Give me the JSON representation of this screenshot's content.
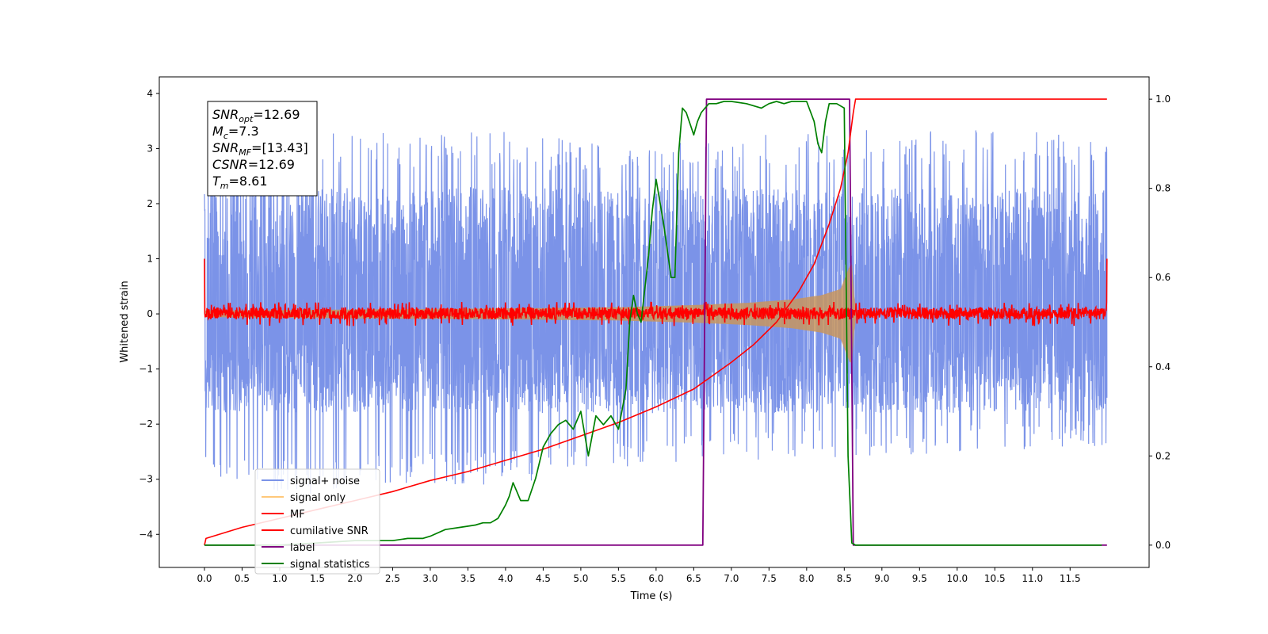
{
  "chart_data": {
    "type": "line",
    "title": "",
    "xlabel": "Time (s)",
    "ylabel": "Whitened strain",
    "xlim": [
      -0.6,
      12.55
    ],
    "ylim": [
      -4.6,
      4.3
    ],
    "y2lim": [
      -0.05,
      1.05
    ],
    "x_ticks": [
      0.0,
      0.5,
      1.0,
      1.5,
      2.0,
      2.5,
      3.0,
      3.5,
      4.0,
      4.5,
      5.0,
      5.5,
      6.0,
      6.5,
      7.0,
      7.5,
      8.0,
      8.5,
      9.0,
      9.5,
      10.0,
      10.5,
      11.0,
      11.5
    ],
    "x_tick_labels": [
      "0.0",
      "0.5",
      "1.0",
      "1.5",
      "2.0",
      "2.5",
      "3.0",
      "3.5",
      "4.0",
      "4.5",
      "5.0",
      "5.5",
      "6.0",
      "6.5",
      "7.0",
      "7.5",
      "8.0",
      "8.5",
      "9.0",
      "9.5",
      "10.0",
      "10.5",
      "11.0",
      "11.5"
    ],
    "y_ticks": [
      -4,
      -3,
      -2,
      -1,
      0,
      1,
      2,
      3,
      4
    ],
    "y_tick_labels": [
      "−4",
      "−3",
      "−2",
      "−1",
      "0",
      "1",
      "2",
      "3",
      "4"
    ],
    "y2_ticks": [
      0.0,
      0.2,
      0.4,
      0.6,
      0.8,
      1.0
    ],
    "y2_tick_labels": [
      "0.0",
      "0.2",
      "0.4",
      "0.6",
      "0.8",
      "1.0"
    ],
    "grid": false,
    "legend_position": "lower-left",
    "annotation_box": {
      "lines": [
        {
          "main": "SNR",
          "sub": "opt",
          "rest": "=12.69"
        },
        {
          "main": "M",
          "sub": "c",
          "rest": "=7.3"
        },
        {
          "main": "SNR",
          "sub": "MF",
          "rest": "=[13.43]"
        },
        {
          "main": "CSNR",
          "sub": "",
          "rest": "=12.69"
        },
        {
          "main": "T",
          "sub": "m",
          "rest": "=8.61"
        }
      ]
    },
    "series": [
      {
        "name": "signal+ noise",
        "color": "#7b93e8",
        "axis": "left",
        "kind": "noise",
        "x_range": [
          0.0,
          11.99
        ],
        "envelope_upper": [
          [
            0.0,
            3.0
          ],
          [
            1.0,
            3.3
          ],
          [
            4.0,
            3.3
          ],
          [
            6.0,
            3.1
          ],
          [
            8.6,
            3.4
          ],
          [
            11.99,
            3.3
          ]
        ],
        "envelope_lower": [
          [
            0.0,
            -2.9
          ],
          [
            1.0,
            -3.3
          ],
          [
            4.0,
            -3.1
          ],
          [
            6.0,
            -2.7
          ],
          [
            8.6,
            -2.6
          ],
          [
            11.99,
            -2.4
          ]
        ],
        "dense_band": [
          -1.8,
          2.3
        ]
      },
      {
        "name": "signal only",
        "color": "#ffc87a",
        "axis": "left",
        "kind": "chirp",
        "x": [
          0.0,
          2.0,
          4.0,
          5.5,
          6.5,
          7.2,
          7.8,
          8.2,
          8.45,
          8.55,
          8.6,
          8.65,
          11.99
        ],
        "amplitude": [
          0.06,
          0.08,
          0.1,
          0.12,
          0.16,
          0.2,
          0.26,
          0.34,
          0.45,
          0.8,
          0.95,
          0.0,
          0.0
        ]
      },
      {
        "name": "MF",
        "color": "#ff0000",
        "axis": "left",
        "kind": "noise_small",
        "x_range": [
          0.0,
          11.99
        ],
        "band": [
          -0.1,
          0.12
        ],
        "peak": 0.22,
        "edge_value": 1.0
      },
      {
        "name": "cumilative SNR",
        "color": "#ff0000",
        "axis": "right",
        "x": [
          0.0,
          0.02,
          0.5,
          1.0,
          1.5,
          2.0,
          2.5,
          3.0,
          3.5,
          4.0,
          4.5,
          5.0,
          5.5,
          6.0,
          6.5,
          7.0,
          7.3,
          7.6,
          7.9,
          8.1,
          8.3,
          8.45,
          8.55,
          8.62,
          8.65,
          11.99
        ],
        "y": [
          0.0,
          0.015,
          0.04,
          0.06,
          0.08,
          0.1,
          0.12,
          0.145,
          0.165,
          0.19,
          0.215,
          0.245,
          0.275,
          0.31,
          0.35,
          0.41,
          0.45,
          0.5,
          0.57,
          0.63,
          0.72,
          0.8,
          0.88,
          0.97,
          1.0,
          1.0
        ]
      },
      {
        "name": "label",
        "color": "#800080",
        "axis": "right",
        "x": [
          0.0,
          6.62,
          6.67,
          8.57,
          8.62,
          11.99
        ],
        "y": [
          0.0,
          0.0,
          1.0,
          1.0,
          0.0,
          0.0
        ]
      },
      {
        "name": "signal statistics",
        "color": "#008000",
        "axis": "right",
        "x": [
          0.0,
          0.5,
          1.0,
          1.5,
          2.0,
          2.3,
          2.5,
          2.7,
          2.9,
          3.0,
          3.2,
          3.4,
          3.6,
          3.7,
          3.8,
          3.9,
          4.0,
          4.05,
          4.1,
          4.15,
          4.2,
          4.3,
          4.4,
          4.5,
          4.6,
          4.7,
          4.8,
          4.9,
          5.0,
          5.1,
          5.2,
          5.3,
          5.4,
          5.5,
          5.6,
          5.65,
          5.7,
          5.75,
          5.8,
          5.9,
          5.95,
          6.0,
          6.1,
          6.2,
          6.25,
          6.3,
          6.35,
          6.4,
          6.5,
          6.55,
          6.6,
          6.7,
          6.8,
          6.9,
          7.0,
          7.2,
          7.4,
          7.5,
          7.6,
          7.7,
          7.8,
          8.0,
          8.1,
          8.15,
          8.2,
          8.25,
          8.3,
          8.4,
          8.5,
          8.55,
          8.6,
          8.65,
          8.7,
          9.0,
          10.0,
          11.0,
          11.92
        ],
        "y": [
          0.0,
          0.0,
          0.0,
          0.005,
          0.01,
          0.01,
          0.01,
          0.015,
          0.015,
          0.02,
          0.035,
          0.04,
          0.045,
          0.05,
          0.05,
          0.06,
          0.09,
          0.11,
          0.14,
          0.12,
          0.1,
          0.1,
          0.15,
          0.22,
          0.25,
          0.27,
          0.28,
          0.26,
          0.3,
          0.2,
          0.29,
          0.27,
          0.29,
          0.26,
          0.35,
          0.5,
          0.56,
          0.52,
          0.5,
          0.65,
          0.75,
          0.82,
          0.72,
          0.6,
          0.6,
          0.88,
          0.98,
          0.97,
          0.92,
          0.95,
          0.97,
          0.99,
          0.99,
          0.995,
          0.995,
          0.99,
          0.98,
          0.99,
          0.995,
          0.99,
          0.995,
          0.995,
          0.95,
          0.9,
          0.88,
          0.95,
          0.99,
          0.99,
          0.98,
          0.2,
          0.005,
          0.0,
          0.0,
          0.0,
          0.0,
          0.0,
          0.0
        ]
      }
    ]
  }
}
